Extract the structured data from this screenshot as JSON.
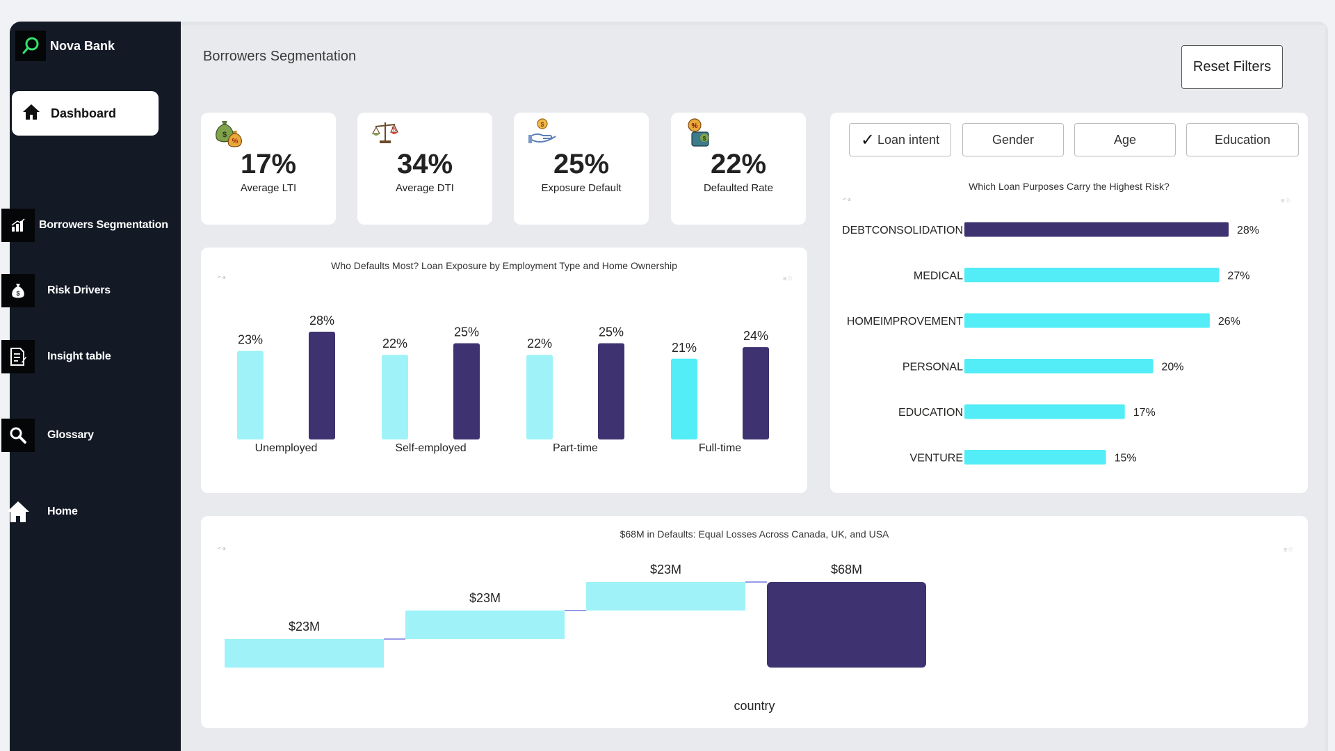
{
  "brand": {
    "name": "Nova Bank"
  },
  "nav": {
    "dashboard": "Dashboard",
    "items": [
      {
        "label": "Borrowers Segmentation",
        "icon": "bar-chart-icon"
      },
      {
        "label": "Risk Drivers",
        "icon": "money-bag-icon"
      },
      {
        "label": "Insight table",
        "icon": "document-icon"
      },
      {
        "label": "Glossary",
        "icon": "search-icon"
      },
      {
        "label": "Home",
        "icon": "home-icon"
      }
    ]
  },
  "header": {
    "title": "Borrowers Segmentation",
    "reset_label": "Reset Filters"
  },
  "kpis": [
    {
      "value": "17%",
      "label": "Average LTI",
      "icon": "money-bags-icon"
    },
    {
      "value": "34%",
      "label": "Average DTI",
      "icon": "scale-icon"
    },
    {
      "value": "25%",
      "label": "Exposure Default",
      "icon": "hand-coin-icon"
    },
    {
      "value": "22%",
      "label": "Defaulted Rate",
      "icon": "coin-percent-icon"
    }
  ],
  "filters": {
    "buttons": [
      {
        "label": "Loan intent",
        "checked": true
      },
      {
        "label": "Gender",
        "checked": false
      },
      {
        "label": "Age",
        "checked": false
      },
      {
        "label": "Education",
        "checked": false
      }
    ]
  },
  "colors": {
    "light": "#9ff3f8",
    "cyan": "#52edf6",
    "navy": "#3e3270",
    "sidebar": "#131a26"
  },
  "chart_data": [
    {
      "type": "bar",
      "title": "Who Defaults Most? Loan Exposure by Employment Type and Home Ownership",
      "categories": [
        "Unemployed",
        "Self-employed",
        "Part-time",
        "Full-time"
      ],
      "series": [
        {
          "values": [
            23,
            22,
            22,
            21
          ]
        },
        {
          "values": [
            28,
            25,
            25,
            24
          ]
        }
      ],
      "value_suffix": "%",
      "ylim": [
        0,
        30
      ],
      "legend": "none",
      "grid": false
    },
    {
      "type": "bar",
      "orientation": "horizontal",
      "title": "Which Loan Purposes Carry the Highest Risk?",
      "categories": [
        "DEBTCONSOLIDATION",
        "MEDICAL",
        "HOMEIMPROVEMENT",
        "PERSONAL",
        "EDUCATION",
        "VENTURE"
      ],
      "values": [
        28,
        27,
        26,
        20,
        17,
        15
      ],
      "value_suffix": "%",
      "xlim": [
        0,
        30
      ],
      "grid": false
    },
    {
      "type": "waterfall",
      "title": "$68M in Defaults: Equal Losses Across Canada, UK, and USA",
      "xlabel": "country",
      "values": [
        23,
        23,
        23
      ],
      "total": 68,
      "labels": [
        "$23M",
        "$23M",
        "$23M"
      ],
      "total_label": "$68M",
      "ylim": [
        0,
        70
      ]
    }
  ]
}
